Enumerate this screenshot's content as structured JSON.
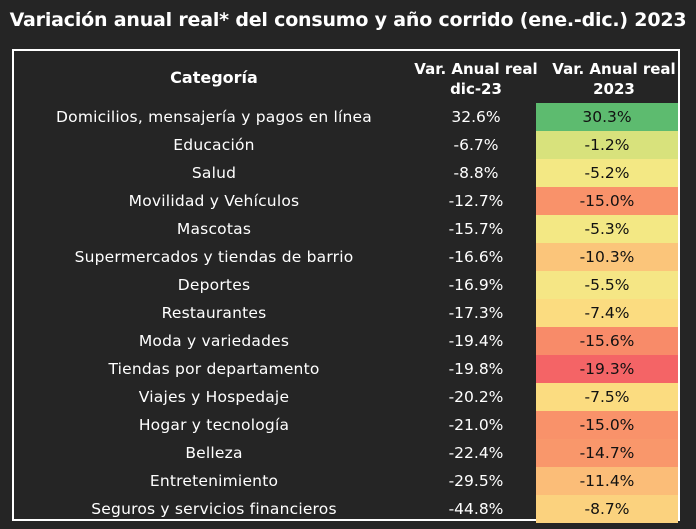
{
  "title": "Variación anual real* del consumo y año corrido (ene.-dic.) 2023",
  "chart_data": {
    "type": "table",
    "columns": [
      "Categoría",
      "Var. Anual real dic-23",
      "Var. Anual real 2023"
    ],
    "header": {
      "category": "Categoría",
      "dic_line1": "Var. Anual real",
      "dic_line2": "dic-23",
      "year_line1": "Var. Anual real",
      "year_line2": "2023"
    },
    "rows": [
      {
        "category": "Domicilios, mensajería y pagos en línea",
        "dic": "32.6%",
        "year": "30.3%",
        "year_value": 30.3,
        "color": "#5dbb6f"
      },
      {
        "category": "Educación",
        "dic": "-6.7%",
        "year": "-1.2%",
        "year_value": -1.2,
        "color": "#d8e27c"
      },
      {
        "category": "Salud",
        "dic": "-8.8%",
        "year": "-5.2%",
        "year_value": -5.2,
        "color": "#f3e884"
      },
      {
        "category": "Movilidad y Vehículos",
        "dic": "-12.7%",
        "year": "-15.0%",
        "year_value": -15.0,
        "color": "#f9926a"
      },
      {
        "category": "Mascotas",
        "dic": "-15.7%",
        "year": "-5.3%",
        "year_value": -5.3,
        "color": "#f3e884"
      },
      {
        "category": "Supermercados y tiendas de barrio",
        "dic": "-16.6%",
        "year": "-10.3%",
        "year_value": -10.3,
        "color": "#fbc57a"
      },
      {
        "category": "Deportes",
        "dic": "-16.9%",
        "year": "-5.5%",
        "year_value": -5.5,
        "color": "#f5e685"
      },
      {
        "category": "Restaurantes",
        "dic": "-17.3%",
        "year": "-7.4%",
        "year_value": -7.4,
        "color": "#fbdc80"
      },
      {
        "category": "Moda y variedades",
        "dic": "-19.4%",
        "year": "-15.6%",
        "year_value": -15.6,
        "color": "#f88b69"
      },
      {
        "category": "Tiendas por departamento",
        "dic": "-19.8%",
        "year": "-19.3%",
        "year_value": -19.3,
        "color": "#f46466"
      },
      {
        "category": "Viajes y Hospedaje",
        "dic": "-20.2%",
        "year": "-7.5%",
        "year_value": -7.5,
        "color": "#fbdc80"
      },
      {
        "category": "Hogar y tecnología",
        "dic": "-21.0%",
        "year": "-15.0%",
        "year_value": -15.0,
        "color": "#f9926a"
      },
      {
        "category": "Belleza",
        "dic": "-22.4%",
        "year": "-14.7%",
        "year_value": -14.7,
        "color": "#f9976b"
      },
      {
        "category": "Entretenimiento",
        "dic": "-29.5%",
        "year": "-11.4%",
        "year_value": -11.4,
        "color": "#fbbd78"
      },
      {
        "category": "Seguros y servicios financieros",
        "dic": "-44.8%",
        "year": "-8.7%",
        "year_value": -8.7,
        "color": "#fbd27e"
      }
    ]
  }
}
